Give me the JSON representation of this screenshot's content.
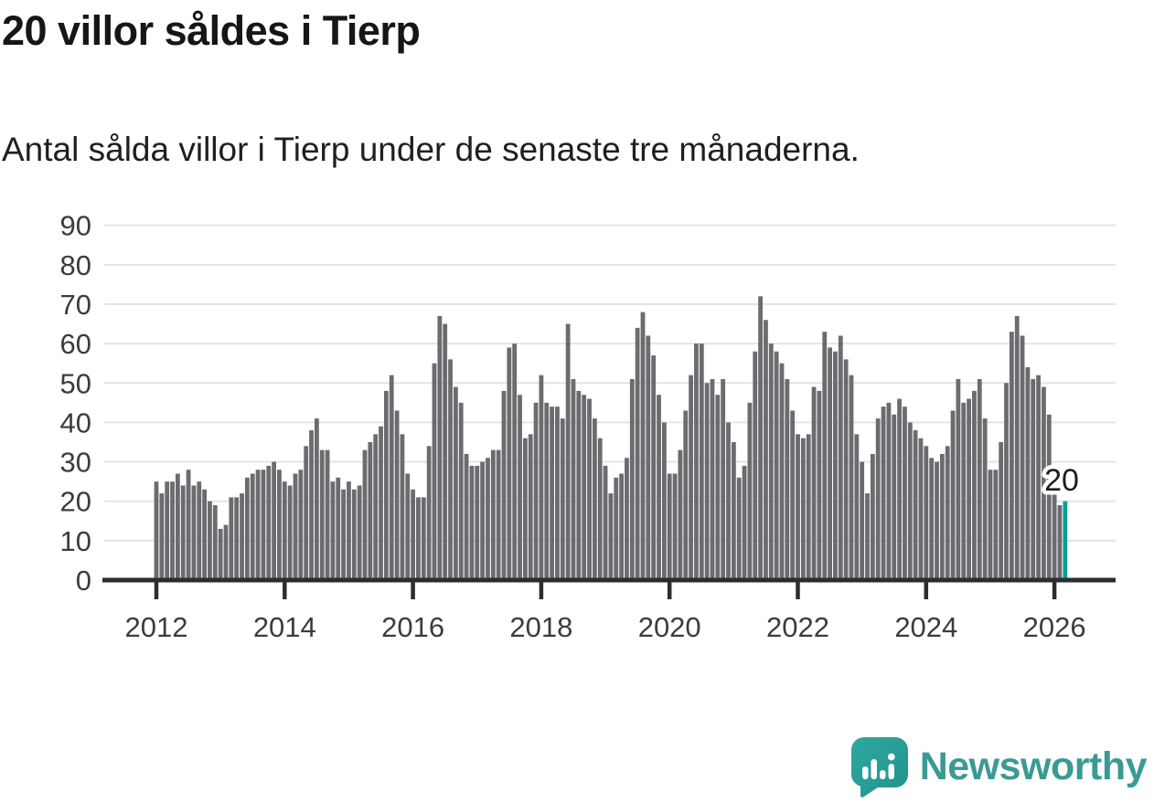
{
  "title": "20 villor såldes i Tierp",
  "subtitle": "Antal sålda villor i Tierp under de senaste tre månaderna.",
  "annotation": {
    "label": "20"
  },
  "branding": {
    "name": "Newsworthy"
  },
  "colors": {
    "bar": "#6b6b70",
    "highlight": "#0a9e97",
    "grid": "#e4e4e4",
    "axis": "#2d2d30",
    "tick_label": "#3c3c3c",
    "logo_teal_light": "#2fa89f",
    "logo_teal_dark": "#1e938c",
    "logo_text": "#3a9a94"
  },
  "chart_data": {
    "type": "bar",
    "title": "20 villor såldes i Tierp",
    "subtitle": "Antal sålda villor i Tierp under de senaste tre månaderna.",
    "unit": "sålda villor (rullande tre månader)",
    "x_start": "2012-01",
    "x_end": "2026-03",
    "x_tick_labels": [
      "2012",
      "2014",
      "2016",
      "2018",
      "2020",
      "2022",
      "2024",
      "2026"
    ],
    "y_ticks": [
      0,
      10,
      20,
      30,
      40,
      50,
      60,
      70,
      80,
      90
    ],
    "ylim": [
      0,
      90
    ],
    "grid": true,
    "legend": false,
    "highlight_last": true,
    "last_value_label": "20",
    "values": [
      25,
      22,
      25,
      25,
      27,
      24,
      28,
      24,
      25,
      23,
      20,
      19,
      13,
      14,
      21,
      21,
      22,
      26,
      27,
      28,
      28,
      29,
      30,
      28,
      25,
      24,
      27,
      28,
      34,
      38,
      41,
      33,
      33,
      25,
      26,
      23,
      25,
      23,
      24,
      33,
      35,
      37,
      39,
      48,
      52,
      43,
      37,
      27,
      23,
      21,
      21,
      34,
      55,
      67,
      65,
      56,
      49,
      45,
      32,
      29,
      29,
      30,
      31,
      33,
      33,
      48,
      59,
      60,
      47,
      36,
      37,
      45,
      52,
      45,
      44,
      44,
      41,
      65,
      51,
      48,
      47,
      46,
      41,
      36,
      29,
      22,
      26,
      27,
      31,
      51,
      64,
      68,
      62,
      57,
      47,
      40,
      27,
      27,
      33,
      43,
      52,
      60,
      60,
      50,
      51,
      47,
      51,
      40,
      35,
      26,
      29,
      45,
      58,
      72,
      66,
      60,
      58,
      55,
      51,
      43,
      37,
      36,
      37,
      49,
      48,
      63,
      59,
      58,
      62,
      56,
      52,
      37,
      30,
      22,
      32,
      41,
      44,
      45,
      42,
      46,
      44,
      40,
      38,
      36,
      34,
      31,
      30,
      32,
      34,
      43,
      51,
      45,
      46,
      48,
      51,
      41,
      28,
      28,
      35,
      50,
      63,
      67,
      62,
      54,
      51,
      52,
      49,
      42,
      23,
      19,
      20
    ]
  }
}
